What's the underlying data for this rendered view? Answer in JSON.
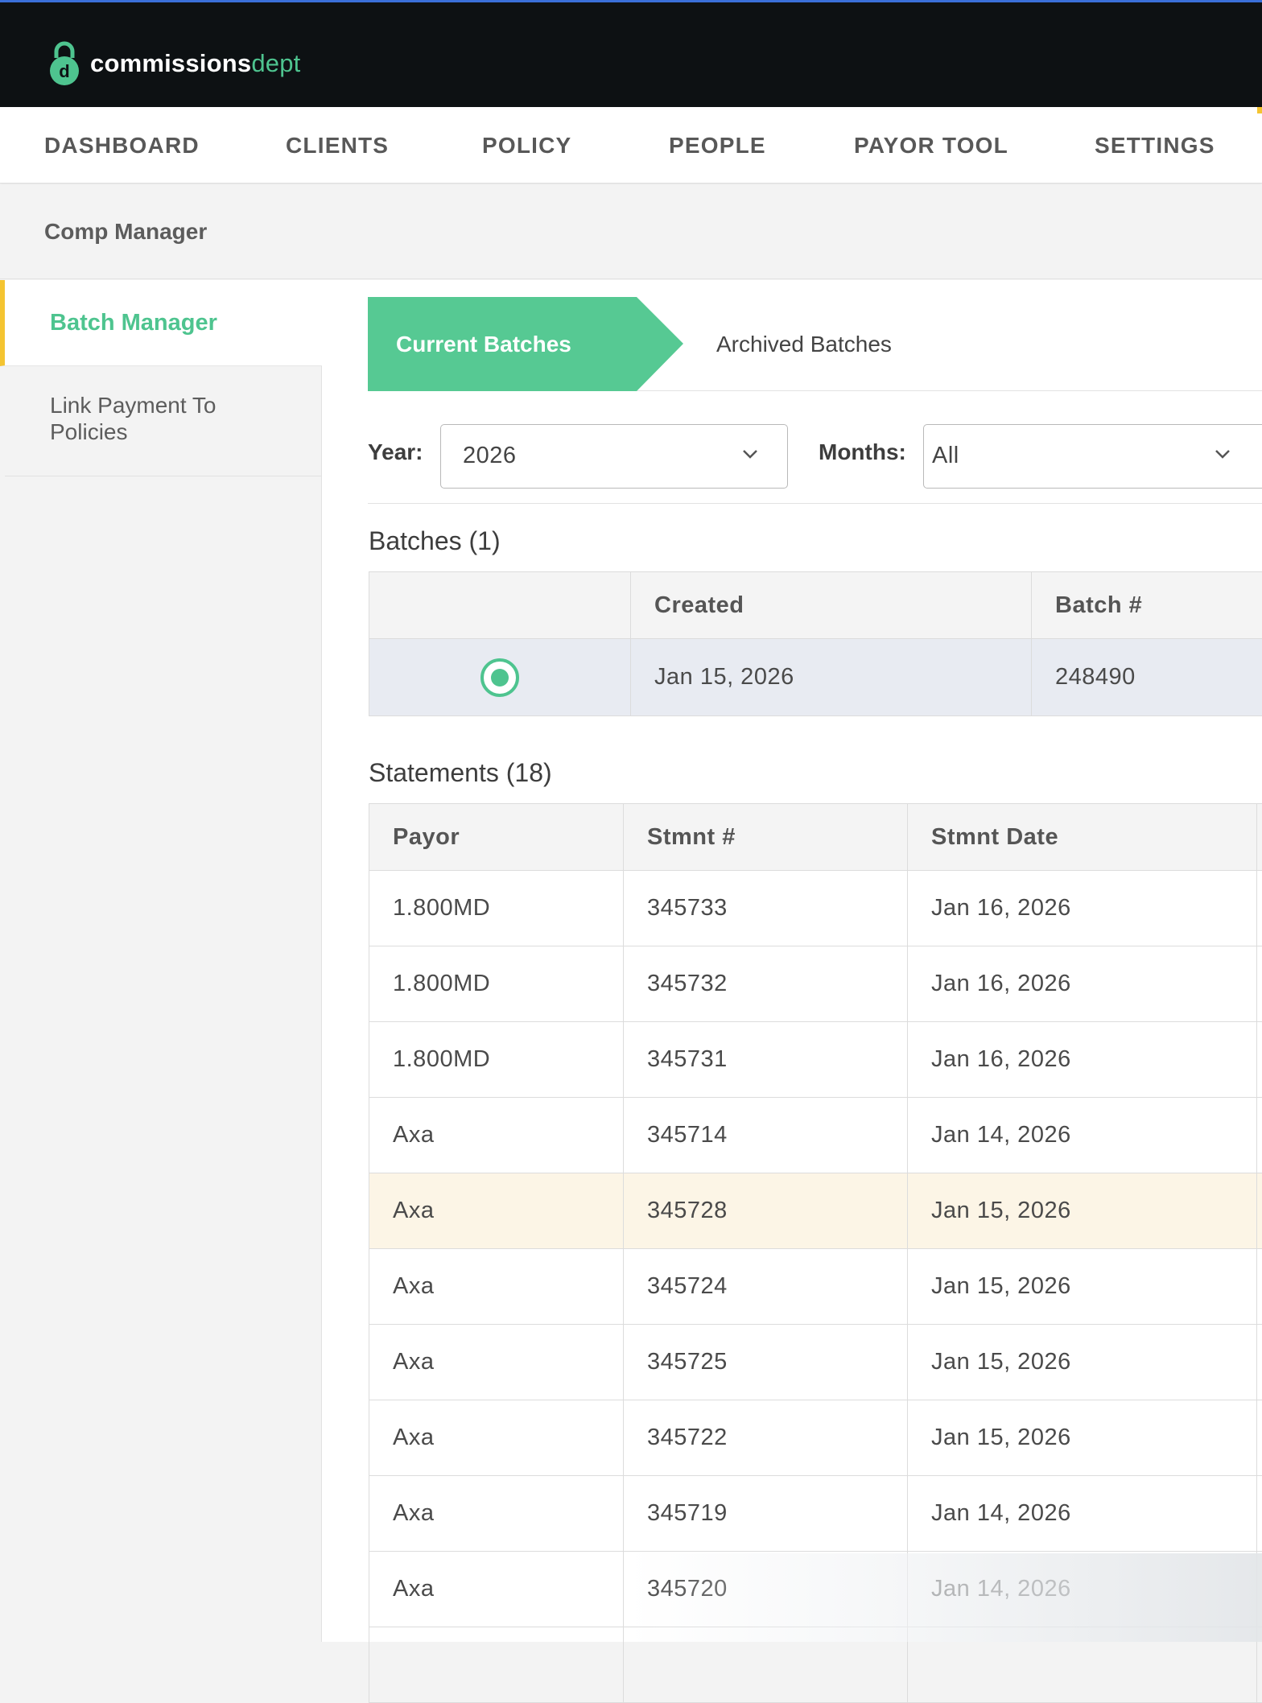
{
  "app": {
    "brand_primary": "commissions",
    "brand_secondary": "dept",
    "logo_icon": "padlock-icon",
    "accent_color": "#4ec48f",
    "highlight_color": "#f4c431"
  },
  "nav": {
    "items": [
      "DASHBOARD",
      "CLIENTS",
      "POLICY",
      "PEOPLE",
      "PAYOR TOOL",
      "SETTINGS"
    ]
  },
  "subbar": {
    "title": "Comp Manager"
  },
  "sidebar": {
    "items": [
      {
        "label": "Batch Manager",
        "active": true
      },
      {
        "label": "Link Payment To Policies",
        "active": false
      }
    ]
  },
  "tabs": {
    "current": "Current Batches",
    "archived": "Archived Batches"
  },
  "filters": {
    "year_label": "Year:",
    "year_value": "2026",
    "months_label": "Months:",
    "months_value": "All"
  },
  "batches": {
    "title": "Batches (1)",
    "columns": [
      "",
      "Created",
      "Batch #"
    ],
    "rows": [
      {
        "selected": true,
        "created": "Jan 15, 2026",
        "batch": "248490"
      }
    ]
  },
  "statements": {
    "title": "Statements (18)",
    "columns": [
      "Payor",
      "Stmnt #",
      "Stmnt Date"
    ],
    "rows": [
      {
        "payor": "1.800MD",
        "stmnt": "345733",
        "date": "Jan 16, 2026"
      },
      {
        "payor": "1.800MD",
        "stmnt": "345732",
        "date": "Jan 16, 2026"
      },
      {
        "payor": "1.800MD",
        "stmnt": "345731",
        "date": "Jan 16, 2026"
      },
      {
        "payor": "Axa",
        "stmnt": "345714",
        "date": "Jan 14, 2026"
      },
      {
        "payor": "Axa",
        "stmnt": "345728",
        "date": "Jan 15, 2026",
        "highlighted": true
      },
      {
        "payor": "Axa",
        "stmnt": "345724",
        "date": "Jan 15, 2026"
      },
      {
        "payor": "Axa",
        "stmnt": "345725",
        "date": "Jan 15, 2026"
      },
      {
        "payor": "Axa",
        "stmnt": "345722",
        "date": "Jan 15, 2026"
      },
      {
        "payor": "Axa",
        "stmnt": "345719",
        "date": "Jan 14, 2026"
      },
      {
        "payor": "Axa",
        "stmnt": "345720",
        "date": "Jan 14, 2026"
      },
      {
        "payor": "",
        "stmnt": "",
        "date": ""
      }
    ]
  }
}
